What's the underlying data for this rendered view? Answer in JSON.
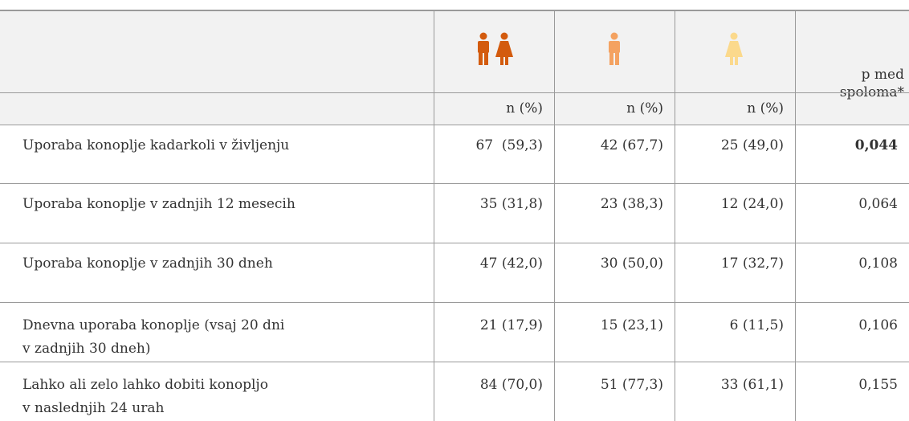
{
  "table": {
    "header": {
      "col4": "p med spoloma*",
      "sub": [
        "n (%)",
        "n (%)",
        "n (%)"
      ]
    },
    "rows": [
      {
        "label": [
          "Uporaba konoplje kadarkoli v življenju"
        ],
        "cells": [
          "67  (59,3)",
          "42 (67,7)",
          "25 (49,0)",
          "0,044"
        ]
      },
      {
        "label": [
          "Uporaba konoplje v zadnjih 12 mesecih"
        ],
        "cells": [
          "35 (31,8)",
          "23 (38,3)",
          "12 (24,0)",
          "0,064"
        ]
      },
      {
        "label": [
          "Uporaba konoplje v zadnjih 30 dneh"
        ],
        "cells": [
          "47 (42,0)",
          "30 (50,0)",
          "17 (32,7)",
          "0,108"
        ]
      },
      {
        "label": [
          "Dnevna uporaba konoplje (vsaj 20 dni",
          "v zadnjih 30 dneh)"
        ],
        "cells": [
          "21 (17,9)",
          "15 (23,1)",
          "6 (11,5)",
          "0,106"
        ]
      },
      {
        "label": [
          "Lahko ali zelo lahko dobiti konopljo",
          "v naslednjih 24 urah"
        ],
        "cells": [
          "84 (70,0)",
          "51 (77,3)",
          "33 (61,1)",
          "0,155"
        ]
      }
    ]
  }
}
